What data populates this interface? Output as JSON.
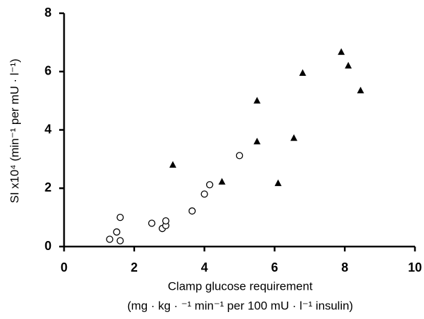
{
  "chart_data": {
    "type": "scatter",
    "x_label": [
      "Clamp glucose requirement",
      "(mg · kg · ⁻¹ min⁻¹ per 100 mU · l⁻¹ insulin)"
    ],
    "y_label": "SI x10⁴ (min⁻¹ per mU · l⁻¹)",
    "xlim": [
      0,
      10
    ],
    "xticks": [
      0,
      2,
      4,
      6,
      8,
      10
    ],
    "ylim": [
      0,
      8
    ],
    "yticks": [
      0,
      2,
      4,
      6,
      8
    ],
    "grid": false,
    "series": [
      {
        "marker": "circle",
        "color": "#000000",
        "x": [
          1.3,
          1.5,
          1.6,
          1.6,
          2.5,
          2.8,
          2.9,
          2.9,
          3.65,
          4.0,
          4.15,
          5.0
        ],
        "values": [
          0.25,
          0.5,
          0.2,
          1.0,
          0.8,
          0.62,
          0.72,
          0.88,
          1.22,
          1.8,
          2.12,
          3.12
        ]
      },
      {
        "marker": "triangle",
        "color": "#000000",
        "x": [
          3.1,
          4.5,
          5.5,
          5.5,
          6.1,
          6.55,
          6.8,
          7.9,
          8.1,
          8.45
        ],
        "values": [
          2.8,
          2.22,
          5.0,
          3.6,
          2.17,
          3.72,
          5.95,
          6.67,
          6.2,
          5.35
        ]
      }
    ]
  }
}
